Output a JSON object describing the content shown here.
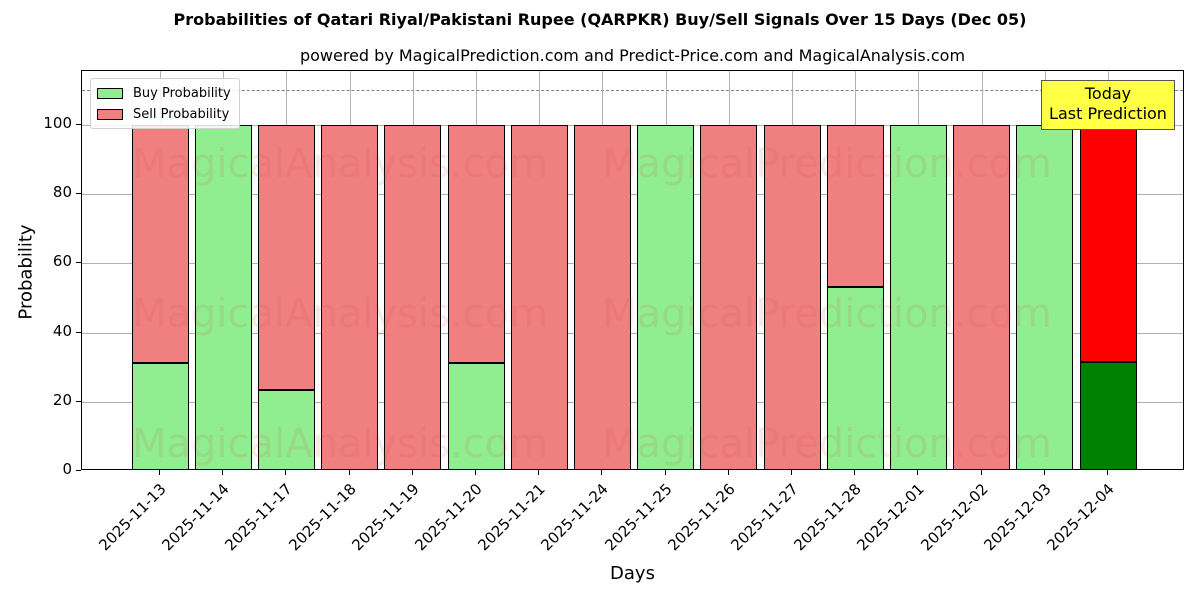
{
  "chart_data": {
    "type": "bar",
    "stacked": true,
    "title": "Probabilities of Qatari Riyal/Pakistani Rupee (QARPKR) Buy/Sell Signals Over 15 Days (Dec 05)",
    "subtitle": "powered by MagicalPrediction.com and Predict-Price.com and MagicalAnalysis.com",
    "xlabel": "Days",
    "ylabel": "Probability",
    "ylim": [
      0,
      115
    ],
    "yticks": [
      0,
      20,
      40,
      60,
      80,
      100
    ],
    "grid": true,
    "legend_position": "upper left",
    "reference_line": {
      "y": 110,
      "style": "dashed",
      "color": "#808080"
    },
    "categories": [
      "2025-11-13",
      "2025-11-14",
      "2025-11-17",
      "2025-11-18",
      "2025-11-19",
      "2025-11-20",
      "2025-11-21",
      "2025-11-24",
      "2025-11-25",
      "2025-11-26",
      "2025-11-27",
      "2025-11-28",
      "2025-12-01",
      "2025-12-02",
      "2025-12-03",
      "2025-12-04"
    ],
    "series": [
      {
        "name": "Buy Probability",
        "color": "#90ee90",
        "values": [
          31.3,
          100,
          23.3,
          0,
          0,
          31.3,
          0,
          0,
          100,
          0,
          0,
          53.2,
          100,
          0,
          100,
          31.4
        ]
      },
      {
        "name": "Sell Probability",
        "color": "#f08080",
        "values": [
          68.7,
          0,
          76.7,
          100,
          100,
          68.7,
          100,
          100,
          0,
          100,
          100,
          46.8,
          0,
          100,
          0,
          68.6
        ]
      }
    ],
    "highlight": {
      "index": 15,
      "buy_color": "#008000",
      "sell_color": "#ff0000",
      "annotation": [
        "Today",
        "Last Prediction"
      ],
      "annotation_bg": "#ffff44"
    },
    "watermarks": [
      "MagicalAnalysis.com",
      "MagicalPrediction.com"
    ]
  },
  "legend": {
    "buy_label": "Buy Probability",
    "sell_label": "Sell Probability"
  },
  "annotation": {
    "line1": "Today",
    "line2": "Last Prediction"
  }
}
